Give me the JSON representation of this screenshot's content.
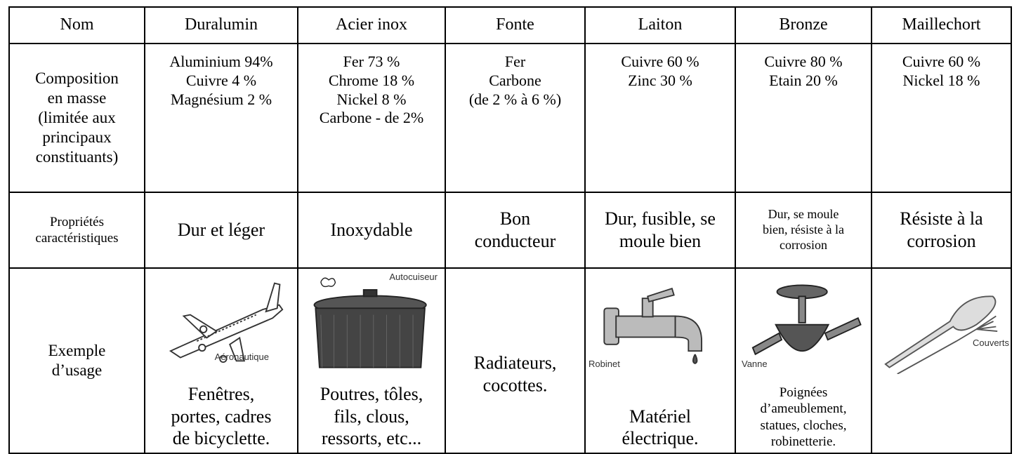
{
  "table": {
    "header": [
      "Nom",
      "Duralumin",
      "Acier inox",
      "Fonte",
      "Laiton",
      "Bronze",
      "Maillechort"
    ],
    "rows": [
      {
        "label": [
          "Composition",
          "en masse",
          "(limitée aux",
          "principaux",
          "constituants)"
        ],
        "cells": [
          [
            "Aluminium 94%",
            "Cuivre 4 %",
            "Magnésium 2 %"
          ],
          [
            "Fer 73 %",
            "Chrome 18 %",
            "Nickel 8 %",
            "Carbone - de 2%"
          ],
          [
            "Fer",
            "Carbone",
            "(de 2 % à 6 %)"
          ],
          [
            "Cuivre 60 %",
            "Zinc 30 %"
          ],
          [
            "Cuivre 80 %",
            "Etain 20 %"
          ],
          [
            "Cuivre 60 %",
            "Nickel 18 %"
          ]
        ]
      },
      {
        "label": [
          "Propriétés",
          "caractéristiques"
        ],
        "cells": [
          [
            "Dur et léger"
          ],
          [
            "Inoxydable"
          ],
          [
            "Bon",
            "conducteur"
          ],
          [
            "Dur, fusible, se",
            "moule bien"
          ],
          [
            "Dur, se moule",
            "bien, résiste à la",
            "corrosion"
          ],
          [
            "Résiste à la",
            "corrosion"
          ]
        ]
      },
      {
        "label": [
          "Exemple",
          "d’usage"
        ],
        "cells": [
          {
            "image_caption": "Aéronautique",
            "text": [
              "Fenêtres,",
              "portes, cadres",
              "de bicyclette."
            ]
          },
          {
            "image_caption": "Autocuiseur",
            "text": [
              "Poutres, tôles,",
              "fils, clous,",
              "ressorts, etc..."
            ]
          },
          {
            "text": [
              "Radiateurs,",
              "cocottes."
            ]
          },
          {
            "image_caption": "Robinet",
            "text": [
              "Matériel",
              "électrique."
            ]
          },
          {
            "image_caption": "Vanne",
            "text": [
              "Poignées",
              "d’ameublement,",
              "statues, cloches,",
              "robinetterie."
            ]
          },
          {
            "image_caption": "Couverts"
          }
        ]
      }
    ]
  }
}
